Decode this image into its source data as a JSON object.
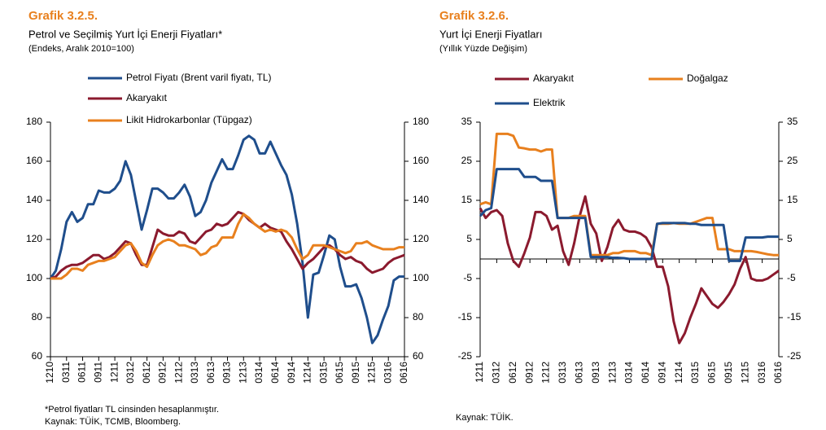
{
  "chart_data": [
    {
      "type": "line",
      "title": "Grafik 3.2.5.",
      "subtitle": "Petrol ve Seçilmiş Yurt İçi Enerji Fiyatları*",
      "note": "(Endeks, Aralık 2010=100)",
      "footnotes": [
        "*Petrol fiyatları TL cinsinden hesaplanmıştır.",
        "Kaynak: TÜİK, TCMB, Bloomberg."
      ],
      "categories": [
        "1210",
        null,
        null,
        "0311",
        null,
        null,
        "0611",
        null,
        null,
        "0911",
        null,
        null,
        "1211",
        null,
        null,
        "0312",
        null,
        null,
        "0612",
        null,
        null,
        "0912",
        null,
        null,
        "1212",
        null,
        null,
        "0313",
        null,
        null,
        "0613",
        null,
        null,
        "0913",
        null,
        null,
        "1213",
        null,
        null,
        "0314",
        null,
        null,
        "0614",
        null,
        null,
        "0914",
        null,
        null,
        "1214",
        null,
        null,
        "0315",
        null,
        null,
        "0615",
        null,
        null,
        "0915",
        null,
        null,
        "1215",
        null,
        null,
        "0316",
        null,
        null,
        "0616"
      ],
      "series": [
        {
          "name": "Petrol Fiyatı (Brent varil fiyatı, TL)",
          "color": "#1f4e8c",
          "values": [
            100,
            104,
            115,
            129,
            134,
            129,
            131,
            138,
            138,
            145,
            144,
            144,
            146,
            150,
            160,
            153,
            139,
            125,
            135,
            146,
            146,
            144,
            141,
            141,
            144,
            148,
            142,
            132,
            134,
            140,
            149,
            155,
            161,
            156,
            156,
            163,
            171,
            173,
            171,
            164,
            164,
            170,
            164,
            158,
            153,
            143,
            128,
            108,
            80,
            102,
            103,
            112,
            122,
            120,
            106,
            96,
            96,
            97,
            90,
            80,
            67,
            71,
            79,
            86,
            99,
            101,
            101
          ]
        },
        {
          "name": "Akaryakıt",
          "color": "#8b1a2e",
          "values": [
            100,
            101,
            104,
            106,
            107,
            107,
            108,
            110,
            112,
            112,
            110,
            111,
            113,
            116,
            119,
            118,
            112,
            107,
            107,
            116,
            125,
            123,
            122,
            122,
            124,
            123,
            119,
            118,
            121,
            124,
            125,
            128,
            127,
            128,
            131,
            134,
            133,
            130,
            128,
            126,
            128,
            126,
            125,
            124,
            119,
            115,
            110,
            105,
            108,
            110,
            113,
            116,
            117,
            115,
            112,
            110,
            111,
            109,
            108,
            105,
            103,
            104,
            105,
            108,
            110,
            111,
            112
          ]
        },
        {
          "name": "Likit Hidrokarbonlar (Tüpgaz)",
          "color": "#e8801e",
          "values": [
            100,
            100,
            100,
            102,
            105,
            105,
            104,
            107,
            108,
            109,
            109,
            110,
            111,
            114,
            117,
            118,
            114,
            108,
            106,
            112,
            117,
            119,
            120,
            119,
            117,
            117,
            116,
            115,
            112,
            113,
            116,
            117,
            121,
            121,
            121,
            128,
            133,
            131,
            128,
            126,
            124,
            125,
            124,
            125,
            124,
            121,
            115,
            110,
            112,
            117,
            117,
            117,
            116,
            115,
            114,
            113,
            114,
            118,
            118,
            119,
            117,
            116,
            115,
            115,
            115,
            116,
            116
          ]
        }
      ],
      "ylim": [
        60,
        180
      ],
      "yticks": [
        60,
        80,
        100,
        120,
        140,
        160,
        180
      ]
    },
    {
      "type": "line",
      "title": "Grafik 3.2.6.",
      "subtitle": "Yurt İçi Enerji Fiyatları",
      "note": "(Yıllık Yüzde Değişim)",
      "footnotes": [
        "Kaynak: TÜİK."
      ],
      "categories": [
        "1211",
        null,
        null,
        "0312",
        null,
        null,
        "0612",
        null,
        null,
        "0912",
        null,
        null,
        "1212",
        null,
        null,
        "0313",
        null,
        null,
        "0613",
        null,
        null,
        "0913",
        null,
        null,
        "1213",
        null,
        null,
        "0314",
        null,
        null,
        "0614",
        null,
        null,
        "0914",
        null,
        null,
        "1214",
        null,
        null,
        "0315",
        null,
        null,
        "0615",
        null,
        null,
        "0915",
        null,
        null,
        "1215",
        null,
        null,
        "0316",
        null,
        null,
        "0616"
      ],
      "series": [
        {
          "name": "Akaryakıt",
          "color": "#8b1a2e",
          "values": [
            13,
            10.5,
            12,
            12.5,
            11,
            4,
            -0.5,
            -2,
            1.5,
            5.5,
            12,
            12,
            11,
            7.5,
            8.5,
            2,
            -1.5,
            4,
            11,
            16,
            9,
            6.5,
            -0.5,
            3,
            8,
            10,
            7.5,
            7,
            7,
            6.5,
            5.5,
            3,
            -2,
            -2,
            -7,
            -16,
            -21.5,
            -19,
            -15,
            -11.5,
            -7.5,
            -9.5,
            -11.5,
            -12.5,
            -11,
            -9,
            -6.5,
            -2.5,
            0.5,
            -5,
            -5.5,
            -5.5,
            -5,
            -4,
            -3
          ]
        },
        {
          "name": "Doğalgaz",
          "color": "#e8801e",
          "values": [
            14,
            14.5,
            14,
            32,
            32,
            32,
            31.5,
            28.5,
            28.3,
            28,
            28,
            27.5,
            28,
            28,
            10.5,
            10.5,
            10.5,
            11,
            11,
            11,
            1,
            1,
            1,
            1,
            1.5,
            1.5,
            2,
            2,
            2,
            1.5,
            1.5,
            1,
            9,
            9,
            9,
            9.2,
            9,
            9,
            9,
            9.5,
            10,
            10.5,
            10.5,
            2.5,
            2.5,
            2.5,
            2,
            2,
            2,
            2,
            1.8,
            1.5,
            1.2,
            1,
            1
          ]
        },
        {
          "name": "Elektrik",
          "color": "#1f4e8c",
          "values": [
            11,
            12.5,
            13,
            23,
            23,
            23,
            23,
            23,
            21,
            21,
            21,
            20,
            20,
            20,
            10.5,
            10.5,
            10.5,
            10.5,
            10.5,
            10.5,
            0.5,
            0.5,
            0.5,
            0.5,
            0.3,
            0.3,
            0.2,
            0,
            0,
            0,
            0,
            0,
            9,
            9.2,
            9.2,
            9.2,
            9.2,
            9.2,
            9,
            9,
            8.7,
            8.7,
            8.7,
            8.7,
            8.7,
            -0.5,
            -0.5,
            -0.5,
            5.5,
            5.5,
            5.5,
            5.5,
            5.7,
            5.7,
            5.7
          ]
        }
      ],
      "ylim": [
        -25,
        35
      ],
      "yticks": [
        -25,
        -15,
        -5,
        5,
        15,
        25,
        35
      ]
    }
  ]
}
